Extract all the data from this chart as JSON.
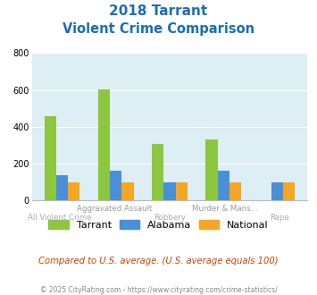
{
  "title_line1": "2018 Tarrant",
  "title_line2": "Violent Crime Comparison",
  "tarrant": [
    460,
    605,
    305,
    330,
    0
  ],
  "alabama": [
    140,
    163,
    100,
    163,
    100
  ],
  "national": [
    100,
    100,
    100,
    100,
    100
  ],
  "color_tarrant": "#8dc63f",
  "color_alabama": "#4a90d9",
  "color_national": "#f5a623",
  "ylim": [
    0,
    800
  ],
  "yticks": [
    0,
    200,
    400,
    600,
    800
  ],
  "bg_color": "#ddeef4",
  "footnote": "Compared to U.S. average. (U.S. average equals 100)",
  "copyright": "© 2025 CityRating.com - https://www.cityrating.com/crime-statistics/",
  "title_color": "#1a6eb5",
  "footnote_color": "#cc4400",
  "copyright_color": "#888888",
  "label_top_color": "#999999",
  "label_bot_color": "#aaaaaa",
  "top_labels": [
    "",
    "Aggravated Assault",
    "",
    "Murder & Mans...",
    ""
  ],
  "bot_labels": [
    "All Violent Crime",
    "",
    "Robbery",
    "",
    "Rape"
  ]
}
